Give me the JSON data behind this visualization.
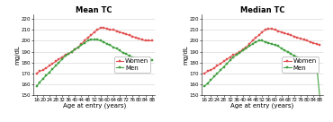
{
  "title_left": "Mean TC",
  "title_right": "Median TC",
  "ylabel": "mg/dL",
  "xlabel": "Age at entry (years)",
  "ylim": [
    150,
    224
  ],
  "yticks": [
    150,
    160,
    170,
    180,
    190,
    200,
    210,
    220
  ],
  "x_ages": [
    16,
    18,
    20,
    22,
    24,
    26,
    28,
    30,
    32,
    34,
    36,
    38,
    40,
    42,
    44,
    46,
    48,
    50,
    52,
    54,
    56,
    58,
    60,
    62,
    64,
    66,
    68,
    70,
    72,
    74,
    76,
    78,
    80,
    82,
    84,
    86,
    88
  ],
  "mean_women": [
    170,
    172,
    173,
    175,
    177,
    179,
    181,
    183,
    185,
    187,
    188,
    190,
    192,
    194,
    197,
    200,
    203,
    205,
    208,
    210,
    212,
    212,
    211,
    210,
    210,
    209,
    208,
    207,
    206,
    205,
    204,
    203,
    202,
    201,
    200,
    200,
    200
  ],
  "mean_men": [
    158,
    162,
    165,
    168,
    171,
    174,
    177,
    180,
    183,
    186,
    188,
    190,
    192,
    194,
    196,
    198,
    200,
    201,
    201,
    201,
    200,
    199,
    197,
    196,
    194,
    193,
    191,
    189,
    188,
    186,
    185,
    184,
    183,
    182,
    182,
    182,
    182
  ],
  "median_women": [
    170,
    172,
    173,
    175,
    177,
    179,
    181,
    183,
    185,
    187,
    188,
    190,
    192,
    194,
    197,
    200,
    203,
    205,
    208,
    210,
    211,
    211,
    210,
    209,
    208,
    207,
    206,
    205,
    204,
    203,
    202,
    201,
    200,
    199,
    198,
    197,
    196
  ],
  "median_men": [
    158,
    161,
    164,
    167,
    170,
    173,
    176,
    179,
    182,
    185,
    187,
    189,
    191,
    193,
    195,
    197,
    199,
    200,
    200,
    199,
    198,
    197,
    196,
    195,
    193,
    191,
    190,
    188,
    186,
    185,
    184,
    183,
    182,
    181,
    180,
    178,
    148
  ],
  "color_women": "#e05050",
  "color_men": "#40a040",
  "marker": "s",
  "markersize": 1.5,
  "linewidth": 0.8,
  "title_fontsize": 6,
  "label_fontsize": 5,
  "tick_fontsize": 4,
  "legend_fontsize": 5,
  "background_color": "#ffffff",
  "grid_color": "#d0d0d0"
}
